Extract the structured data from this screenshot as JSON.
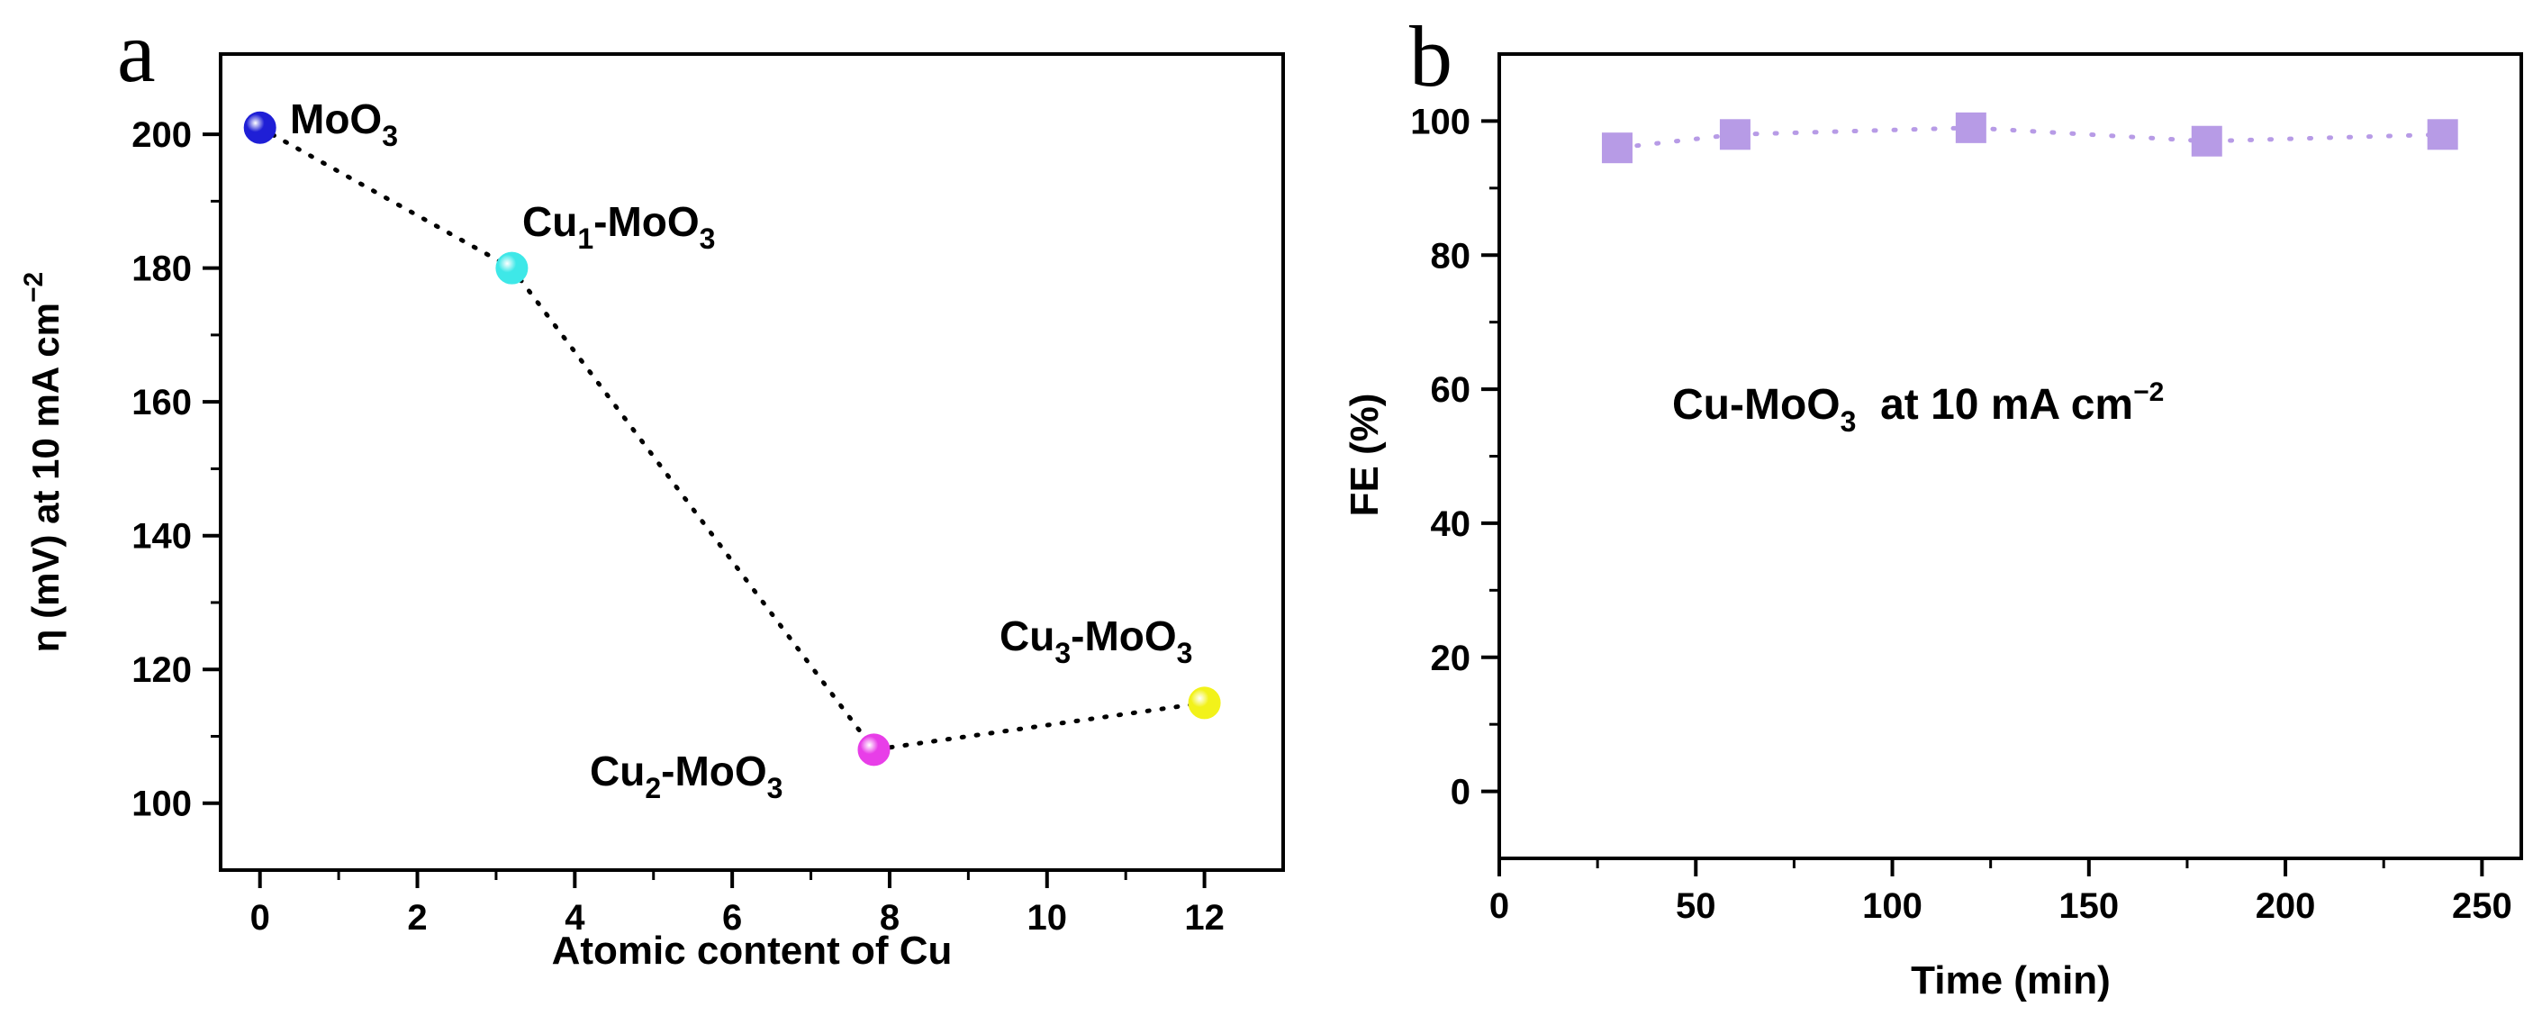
{
  "chart_data": [
    {
      "panel": "a",
      "type": "scatter",
      "title": "",
      "xlabel": "Atomic content of Cu",
      "ylabel": {
        "main": "η (mV) at 10 mA cm",
        "sup": "−2"
      },
      "xlim": [
        -0.5,
        13
      ],
      "ylim": [
        90,
        212
      ],
      "xticks": [
        0,
        2,
        4,
        6,
        8,
        10,
        12
      ],
      "yticks": [
        100,
        120,
        140,
        160,
        180,
        200
      ],
      "line_style": "dotted",
      "points": [
        {
          "x": 0,
          "y": 201,
          "color": "#1f1fd6",
          "label": {
            "main": "MoO",
            "sub": "3"
          }
        },
        {
          "x": 3.2,
          "y": 180,
          "color": "#3ee8e8",
          "label": {
            "main": "Cu",
            "sub1": "1",
            "mid": "-MoO",
            "sub2": "3"
          }
        },
        {
          "x": 7.8,
          "y": 108,
          "color": "#e83ee8",
          "label": {
            "main": "Cu",
            "sub1": "2",
            "mid": "-MoO",
            "sub2": "3"
          }
        },
        {
          "x": 12,
          "y": 115,
          "color": "#f2f21a",
          "label": {
            "main": "Cu",
            "sub1": "3",
            "mid": "-MoO",
            "sub2": "3"
          }
        }
      ]
    },
    {
      "panel": "b",
      "type": "scatter",
      "title": "",
      "xlabel": "Time (min)",
      "ylabel": "FE (%)",
      "xlim": [
        0,
        260
      ],
      "ylim": [
        -10,
        110
      ],
      "xticks": [
        0,
        50,
        100,
        150,
        200,
        250
      ],
      "yticks": [
        0,
        20,
        40,
        60,
        80,
        100
      ],
      "line_style": "dotted",
      "marker": "square",
      "color": "#b79be6",
      "x": [
        30,
        60,
        120,
        180,
        240
      ],
      "y": [
        96,
        98,
        99,
        97,
        98
      ],
      "annotation": {
        "main": "Cu-MoO",
        "sub": "3",
        "rest": "  at 10 mA cm",
        "sup": "−2"
      }
    }
  ]
}
